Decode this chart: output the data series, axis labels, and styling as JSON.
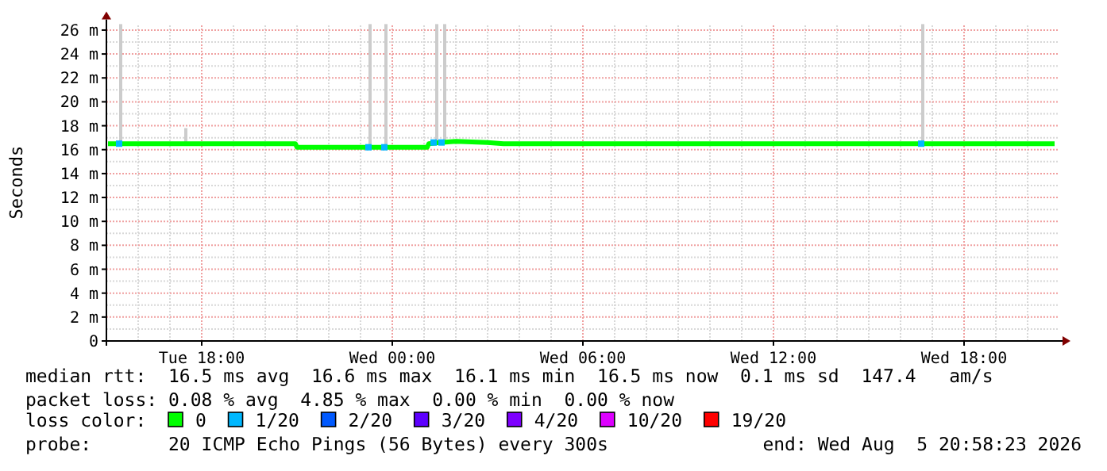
{
  "chart_data": {
    "type": "line",
    "ylabel": "Seconds",
    "legend_title": "loss color:",
    "legend": "bottom",
    "grid": true,
    "xlim": [
      "2026-08-04T15:00",
      "2026-08-05T21:00"
    ],
    "xticks": [
      {
        "value": "2026-08-04T18:00",
        "label": "Tue 18:00"
      },
      {
        "value": "2026-08-05T00:00",
        "label": "Wed 00:00"
      },
      {
        "value": "2026-08-05T06:00",
        "label": "Wed 06:00"
      },
      {
        "value": "2026-08-05T12:00",
        "label": "Wed 12:00"
      },
      {
        "value": "2026-08-05T18:00",
        "label": "Wed 18:00"
      }
    ],
    "ylim": [
      0,
      26.5
    ],
    "yticks": [
      0,
      {
        "value": 2,
        "label": "2 m"
      },
      {
        "value": 4,
        "label": "4 m"
      },
      {
        "value": 6,
        "label": "6 m"
      },
      {
        "value": 8,
        "label": "8 m"
      },
      {
        "value": 10,
        "label": "10 m"
      },
      {
        "value": 12,
        "label": "12 m"
      },
      {
        "value": 14,
        "label": "14 m"
      },
      {
        "value": 16,
        "label": "16 m"
      },
      {
        "value": 18,
        "label": "18 m"
      },
      {
        "value": 20,
        "label": "20 m"
      },
      {
        "value": 22,
        "label": "22 m"
      },
      {
        "value": 24,
        "label": "24 m"
      },
      {
        "value": 26,
        "label": "26 m"
      }
    ],
    "series": [
      {
        "type": "bar",
        "color": "#cccccc",
        "x": [
          "2026-08-04T15:27",
          "2026-08-04T17:30",
          "2026-08-04T23:18",
          "2026-08-04T23:48",
          "2026-08-05T01:24",
          "2026-08-05T01:39",
          "2026-08-05T16:42"
        ],
        "base": [
          16.6,
          16.6,
          16.3,
          16.3,
          16.7,
          16.7,
          16.6
        ],
        "values": [
          9.9,
          1.2,
          10.2,
          10.2,
          9.8,
          9.8,
          9.9
        ]
      },
      {
        "name": "0",
        "color": "#00ff00",
        "x": [
          "2026-08-04T15:03",
          "2026-08-04T20:57",
          "2026-08-04T21:00",
          "2026-08-05T01:06",
          "2026-08-05T01:09",
          "2026-08-05T01:30",
          "2026-08-05T02:00",
          "2026-08-05T03:00",
          "2026-08-05T03:30",
          "2026-08-05T20:51"
        ],
        "values": [
          16.5,
          16.5,
          16.2,
          16.2,
          16.5,
          16.6,
          16.7,
          16.6,
          16.5,
          16.5
        ]
      },
      {
        "name": "1/20",
        "type": "scatter",
        "marker": "square",
        "color": "#00b8ff",
        "x": [
          "2026-08-04T15:24",
          "2026-08-04T23:15",
          "2026-08-04T23:45",
          "2026-08-05T01:18",
          "2026-08-05T01:33",
          "2026-08-05T16:39"
        ],
        "values": [
          16.5,
          16.2,
          16.2,
          16.6,
          16.6,
          16.5
        ]
      },
      {
        "name": "2/20",
        "type": "scatter",
        "marker": "square",
        "color": "#0059ff"
      },
      {
        "name": "3/20",
        "type": "scatter",
        "marker": "square",
        "color": "#5e00ff"
      },
      {
        "name": "4/20",
        "type": "scatter",
        "marker": "square",
        "color": "#7e00ff"
      },
      {
        "name": "10/20",
        "type": "scatter",
        "marker": "square",
        "color": "#dd00ff"
      },
      {
        "name": "19/20",
        "type": "scatter",
        "marker": "square",
        "color": "#ff0000"
      }
    ],
    "annotations": [
      "median rtt:  16.5 ms avg  16.6 ms max  16.1 ms min  16.5 ms now  0.1 ms sd  147.4   am/s",
      "packet loss: 0.08 % avg  4.85 % max  0.00 % min  0.00 % now",
      "probe:       20 ICMP Echo Pings (56 Bytes) every 300s",
      "end: Wed Aug  5 20:58:23 2026"
    ]
  }
}
